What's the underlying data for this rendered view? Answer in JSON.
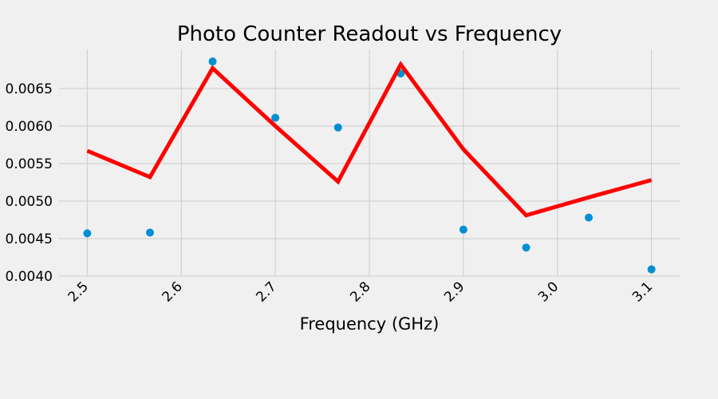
{
  "chart_data": {
    "type": "line",
    "title": "Photo Counter Readout vs Frequency",
    "xlabel": "Frequency (GHz)",
    "ylabel": "",
    "xlim": [
      2.47,
      3.13
    ],
    "ylim": [
      0.004,
      0.00702
    ],
    "x_ticks": [
      2.5,
      2.6,
      2.7,
      2.8,
      2.9,
      3.0,
      3.1
    ],
    "x_tick_labels": [
      "2.5",
      "2.6",
      "2.7",
      "2.8",
      "2.9",
      "3.0",
      "3.1"
    ],
    "y_ticks": [
      0.004,
      0.0045,
      0.005,
      0.0055,
      0.006,
      0.0065
    ],
    "y_tick_labels": [
      "0.0040",
      "0.0045",
      "0.0050",
      "0.0055",
      "0.0060",
      "0.0065"
    ],
    "grid": true,
    "series": [
      {
        "kind": "scatter",
        "color": "#008fd5",
        "x": [
          2.5,
          2.5667,
          2.6333,
          2.7,
          2.7667,
          2.8333,
          2.9,
          2.9667,
          3.0333,
          3.1
        ],
        "y": [
          0.00457,
          0.00458,
          0.00686,
          0.00611,
          0.00598,
          0.0067,
          0.00462,
          0.00438,
          0.00478,
          0.00409
        ]
      },
      {
        "kind": "line",
        "color": "#ff0000",
        "x": [
          2.5,
          2.5667,
          2.6333,
          2.7,
          2.7667,
          2.8333,
          2.9,
          2.9667,
          3.0333,
          3.1
        ],
        "y": [
          0.00567,
          0.00532,
          0.00677,
          0.006,
          0.00526,
          0.00682,
          0.00569,
          0.00481,
          0.00505,
          0.00528
        ]
      }
    ]
  }
}
